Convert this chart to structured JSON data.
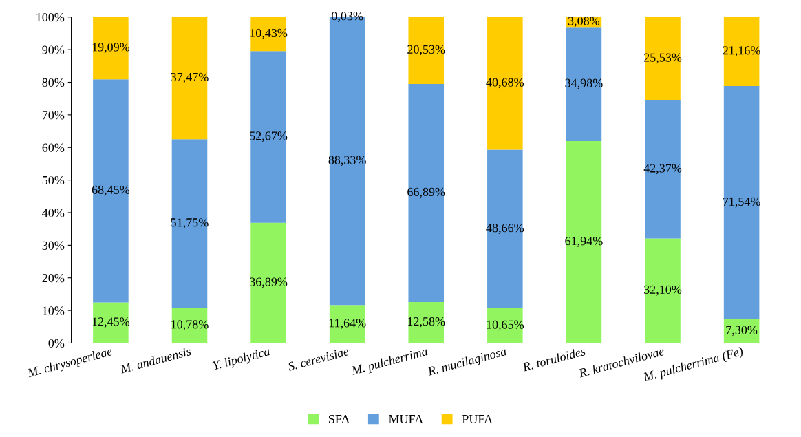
{
  "chart_data": {
    "type": "bar",
    "stacked": true,
    "categories": [
      "M. chrysoperleae",
      "M. andauensis",
      "Y. lipolytica",
      "S. cerevisiae",
      "M. pulcherrima",
      "R. mucilaginosa",
      "R. toruloides",
      "R. kratochvilovae",
      "M. pulcherrima (Fe)"
    ],
    "series": [
      {
        "name": "SFA",
        "color": "#92f560",
        "values": [
          12.45,
          10.78,
          36.89,
          11.64,
          12.58,
          10.65,
          61.94,
          32.1,
          7.3
        ],
        "value_labels": [
          "12,45%",
          "10,78%",
          "36,89%",
          "11,64%",
          "12,58%",
          "10,65%",
          "61,94%",
          "32,10%",
          "7,30%"
        ]
      },
      {
        "name": "MUFA",
        "color": "#629fdc",
        "values": [
          68.45,
          51.75,
          52.67,
          88.33,
          66.89,
          48.66,
          34.98,
          42.37,
          71.54
        ],
        "value_labels": [
          "68,45%",
          "51,75%",
          "52,67%",
          "88,33%",
          "66,89%",
          "48,66%",
          "34,98%",
          "42,37%",
          "71,54%"
        ]
      },
      {
        "name": "PUFA",
        "color": "#ffcc00",
        "values": [
          19.09,
          37.47,
          10.43,
          0.03,
          20.53,
          40.68,
          3.08,
          25.53,
          21.16
        ],
        "value_labels": [
          "19,09%",
          "37,47%",
          "10,43%",
          "0,03%",
          "20,53%",
          "40,68%",
          "3,08%",
          "25,53%",
          "21,16%"
        ]
      }
    ],
    "ylim": [
      0,
      100
    ],
    "yticks": [
      {
        "value": 0,
        "label": "0%"
      },
      {
        "value": 10,
        "label": "10%"
      },
      {
        "value": 20,
        "label": "20%"
      },
      {
        "value": 30,
        "label": "30%"
      },
      {
        "value": 40,
        "label": "40%"
      },
      {
        "value": 50,
        "label": "50%"
      },
      {
        "value": 60,
        "label": "60%"
      },
      {
        "value": 70,
        "label": "70%"
      },
      {
        "value": 80,
        "label": "80%"
      },
      {
        "value": 90,
        "label": "90%"
      },
      {
        "value": 100,
        "label": "100%"
      }
    ],
    "grid": false,
    "legend": "bottom"
  }
}
